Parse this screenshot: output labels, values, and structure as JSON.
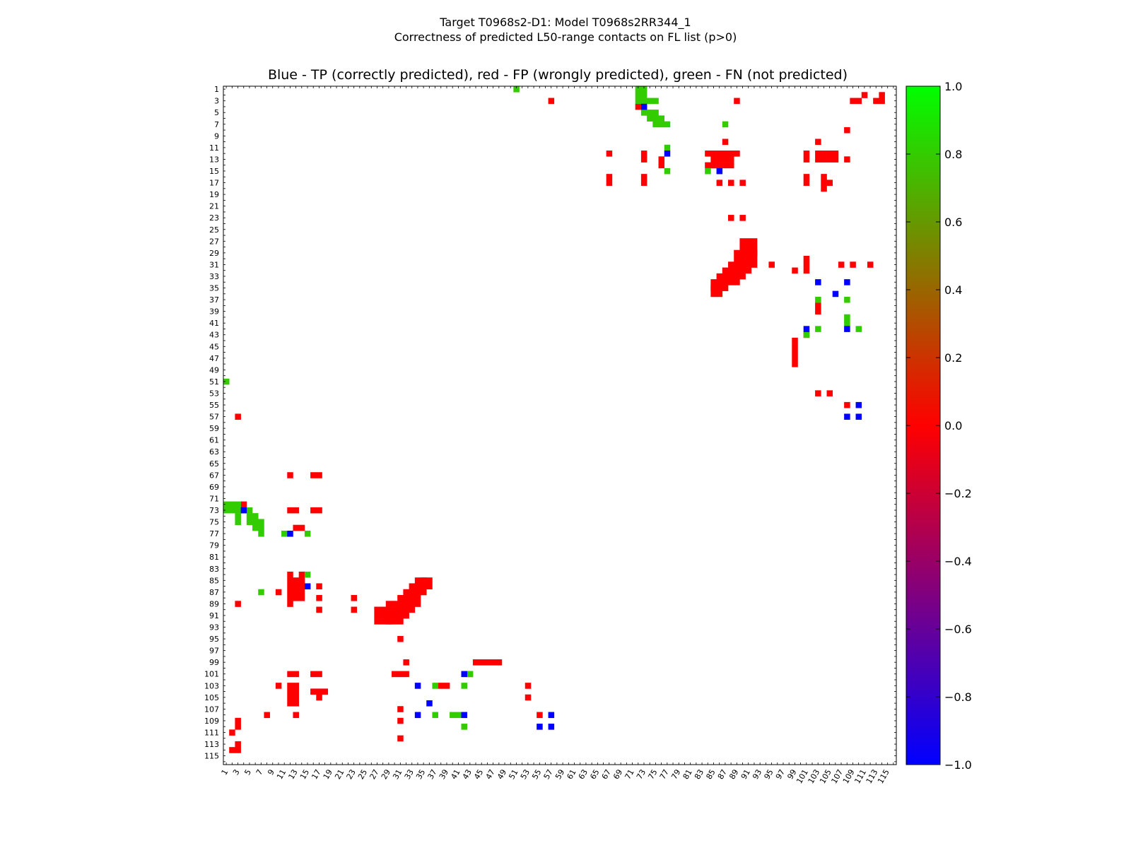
{
  "title_line1": "Target T0968s2-D1: Model T0968s2RR344_1",
  "title_line2": "Correctness of predicted L50-range contacts on FL list (p>0)",
  "plot_title": "Blue - TP (correctly predicted), red - FP (wrongly predicted), green - FN (not predicted)",
  "colors": {
    "TP": "#0000ff",
    "FP": "#ff0000",
    "FN": "#33cc00"
  },
  "chart_data": {
    "type": "heatmap",
    "n_residues": 116,
    "xlim": [
      1,
      116
    ],
    "ylim": [
      1,
      116
    ],
    "x_ticks": [
      1,
      3,
      5,
      7,
      9,
      11,
      13,
      15,
      17,
      19,
      21,
      23,
      25,
      27,
      29,
      31,
      33,
      35,
      37,
      39,
      41,
      43,
      45,
      47,
      49,
      51,
      53,
      55,
      57,
      59,
      61,
      63,
      65,
      67,
      69,
      71,
      73,
      75,
      77,
      79,
      81,
      83,
      85,
      87,
      89,
      91,
      93,
      95,
      97,
      99,
      101,
      103,
      105,
      107,
      109,
      111,
      113,
      115
    ],
    "y_ticks": [
      1,
      3,
      5,
      7,
      9,
      11,
      13,
      15,
      17,
      19,
      21,
      23,
      25,
      27,
      29,
      31,
      33,
      35,
      37,
      39,
      41,
      43,
      45,
      47,
      49,
      51,
      53,
      55,
      57,
      59,
      61,
      63,
      65,
      67,
      69,
      71,
      73,
      75,
      77,
      79,
      81,
      83,
      85,
      87,
      89,
      91,
      93,
      95,
      97,
      99,
      101,
      103,
      105,
      107,
      109,
      111,
      113,
      115
    ],
    "colorbar": {
      "min": -1.0,
      "max": 1.0,
      "ticks": [
        "1.0",
        "0.8",
        "0.6",
        "0.4",
        "0.2",
        "0.0",
        "−0.2",
        "−0.4",
        "−0.6",
        "−0.8",
        "−1.0"
      ]
    },
    "fn_cells": [
      [
        1,
        51
      ],
      [
        1,
        72
      ],
      [
        1,
        73
      ],
      [
        2,
        72
      ],
      [
        2,
        73
      ],
      [
        3,
        72
      ],
      [
        3,
        73
      ],
      [
        3,
        74
      ],
      [
        3,
        75
      ],
      [
        4,
        73
      ],
      [
        5,
        73
      ],
      [
        5,
        74
      ],
      [
        5,
        75
      ],
      [
        6,
        74
      ],
      [
        6,
        75
      ],
      [
        6,
        76
      ],
      [
        7,
        75
      ],
      [
        7,
        76
      ],
      [
        7,
        77
      ],
      [
        11,
        77
      ],
      [
        15,
        77
      ],
      [
        7,
        87
      ],
      [
        15,
        84
      ],
      [
        37,
        103
      ],
      [
        37,
        108
      ],
      [
        40,
        108
      ],
      [
        41,
        108
      ],
      [
        42,
        103
      ],
      [
        42,
        110
      ],
      [
        43,
        101
      ]
    ],
    "tp_cells": [
      [
        4,
        73
      ],
      [
        12,
        77
      ],
      [
        15,
        86
      ],
      [
        34,
        103
      ],
      [
        34,
        108
      ],
      [
        36,
        106
      ],
      [
        42,
        101
      ],
      [
        42,
        108
      ],
      [
        55,
        110
      ],
      [
        57,
        108
      ],
      [
        57,
        110
      ]
    ],
    "fp_cells": [
      [
        3,
        57
      ],
      [
        3,
        89
      ],
      [
        4,
        72
      ],
      [
        2,
        111
      ],
      [
        3,
        109
      ],
      [
        3,
        110
      ],
      [
        3,
        113
      ],
      [
        3,
        114
      ],
      [
        2,
        114
      ],
      [
        8,
        108
      ],
      [
        10,
        87
      ],
      [
        10,
        103
      ],
      [
        12,
        67
      ],
      [
        12,
        89
      ],
      [
        12,
        84
      ],
      [
        12,
        101
      ],
      [
        12,
        103
      ],
      [
        12,
        104
      ],
      [
        12,
        105
      ],
      [
        12,
        106
      ],
      [
        13,
        101
      ],
      [
        13,
        103
      ],
      [
        13,
        104
      ],
      [
        13,
        105
      ],
      [
        13,
        106
      ],
      [
        13,
        108
      ],
      [
        12,
        73
      ],
      [
        13,
        73
      ],
      [
        13,
        76
      ],
      [
        14,
        76
      ],
      [
        14,
        84
      ],
      [
        14,
        85
      ],
      [
        16,
        67
      ],
      [
        17,
        67
      ],
      [
        16,
        73
      ],
      [
        17,
        73
      ],
      [
        16,
        101
      ],
      [
        17,
        101
      ],
      [
        16,
        104
      ],
      [
        17,
        104
      ],
      [
        17,
        105
      ],
      [
        18,
        104
      ],
      [
        17,
        86
      ],
      [
        17,
        88
      ],
      [
        17,
        90
      ],
      [
        23,
        88
      ],
      [
        23,
        90
      ],
      [
        31,
        95
      ],
      [
        31,
        101
      ],
      [
        31,
        107
      ],
      [
        31,
        109
      ],
      [
        31,
        112
      ],
      [
        32,
        99
      ],
      [
        32,
        101
      ],
      [
        30,
        101
      ],
      [
        53,
        103
      ],
      [
        53,
        105
      ],
      [
        55,
        108
      ],
      [
        38,
        103
      ],
      [
        39,
        103
      ],
      [
        43,
        101
      ],
      [
        44,
        99
      ],
      [
        45,
        99
      ],
      [
        46,
        99
      ],
      [
        47,
        99
      ],
      [
        48,
        99
      ]
    ],
    "fp_blocks": [
      [
        12,
        14,
        85,
        88
      ],
      [
        27,
        29,
        90,
        92
      ],
      [
        29,
        31,
        89,
        92
      ],
      [
        31,
        32,
        88,
        91
      ],
      [
        32,
        33,
        87,
        90
      ],
      [
        33,
        34,
        86,
        89
      ],
      [
        34,
        35,
        85,
        87
      ],
      [
        35,
        36,
        85,
        86
      ]
    ]
  }
}
